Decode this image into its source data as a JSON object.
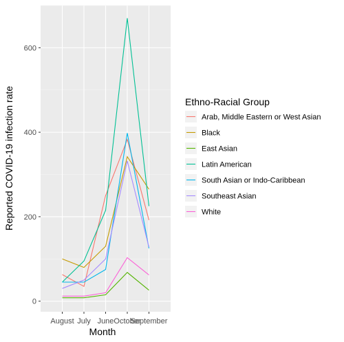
{
  "chart_data": {
    "type": "line",
    "categories": [
      "August",
      "July",
      "June",
      "October",
      "September"
    ],
    "xlabel": "Month",
    "ylabel": "Reported COVID-19 infection rate",
    "ylim": [
      -25,
      700
    ],
    "yticks": [
      0,
      200,
      400,
      600
    ],
    "grid": true,
    "legend_title": "Ethno-Racial Group",
    "legend_position": "right",
    "series": [
      {
        "name": "Arab, Middle Eastern or West Asian",
        "color": "#F8766D",
        "values": [
          63,
          35,
          250,
          383,
          192
        ]
      },
      {
        "name": "Black",
        "color": "#C49A00",
        "values": [
          100,
          80,
          130,
          342,
          265
        ]
      },
      {
        "name": "East Asian",
        "color": "#53B400",
        "values": [
          8,
          8,
          15,
          68,
          26
        ]
      },
      {
        "name": "Latin American",
        "color": "#00C094",
        "values": [
          45,
          95,
          215,
          670,
          225
        ]
      },
      {
        "name": "South Asian or Indo-Caribbean",
        "color": "#00B6EB",
        "values": [
          45,
          45,
          75,
          398,
          125
        ]
      },
      {
        "name": "Southeast Asian",
        "color": "#A58AFF",
        "values": [
          30,
          50,
          100,
          332,
          128
        ]
      },
      {
        "name": "White",
        "color": "#FB61D7",
        "values": [
          12,
          12,
          20,
          103,
          62
        ]
      }
    ]
  }
}
